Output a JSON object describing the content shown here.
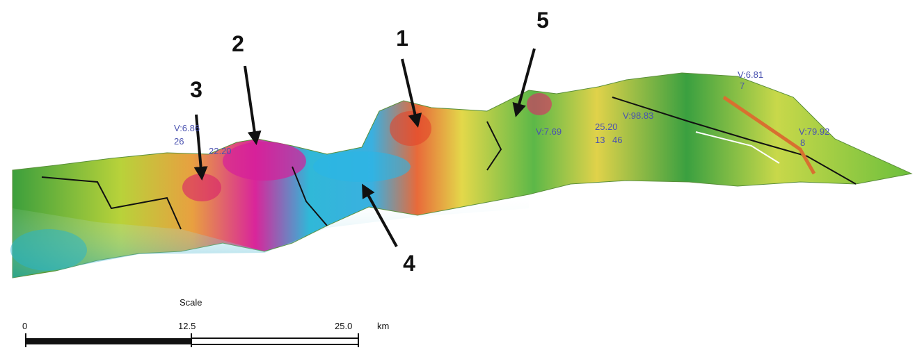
{
  "markers": [
    {
      "label": "1"
    },
    {
      "label": "2"
    },
    {
      "label": "3"
    },
    {
      "label": "4"
    },
    {
      "label": "5"
    }
  ],
  "terrain_labels": [
    "V:6.81",
    "7",
    "V:79.92",
    "8",
    "V:6.86",
    "26",
    "22.20",
    "V:7.69",
    "V:98.83",
    "25.20",
    "13",
    "46"
  ],
  "scale": {
    "title": "Scale",
    "ticks": [
      "0",
      "12.5",
      "25.0"
    ],
    "unit": "km"
  }
}
